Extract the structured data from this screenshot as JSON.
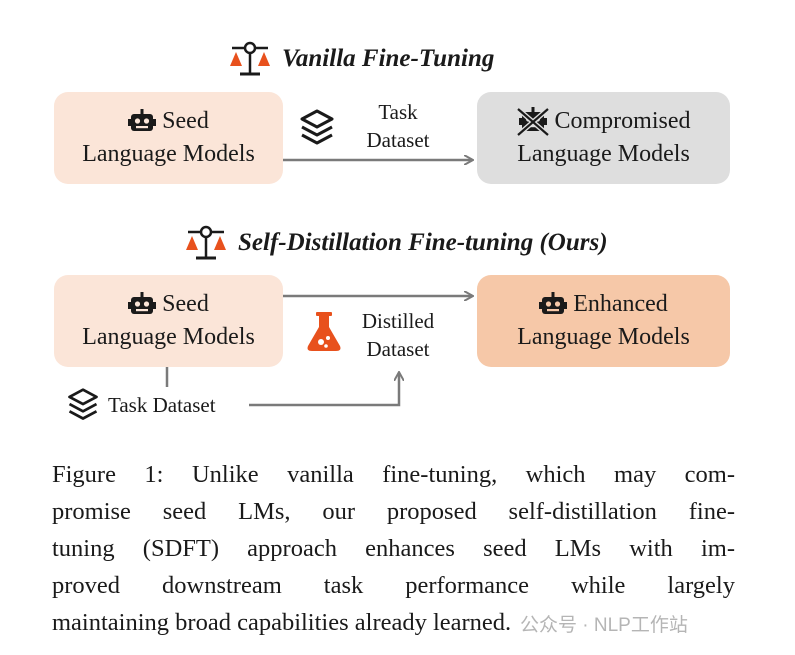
{
  "sections": {
    "vanilla": {
      "title": "Vanilla Fine-Tuning",
      "source_line1": "Seed",
      "source_line2": "Language Models",
      "edge_label_line1": "Task",
      "edge_label_line2": "Dataset",
      "target_line1": "Compromised",
      "target_line2": "Language Models"
    },
    "sdft": {
      "title": "Self-Distillation Fine-tuning (Ours)",
      "source_line1": "Seed",
      "source_line2": "Language Models",
      "distilled_line1": "Distilled",
      "distilled_line2": "Dataset",
      "task_dataset": "Task Dataset",
      "target_line1": "Enhanced",
      "target_line2": "Language Models"
    }
  },
  "caption": {
    "lines": [
      "Figure 1: Unlike vanilla fine-tuning, which may com-",
      "promise seed LMs, our proposed self-distillation fine-",
      "tuning (SDFT) approach enhances seed LMs with im-",
      "proved downstream task performance while largely",
      "maintaining broad capabilities already learned."
    ]
  },
  "watermark": "公众号 · NLP工作站",
  "colors": {
    "accent": "#e8511d",
    "seed_box": "#fbe5d8",
    "compromised_box": "#dedede",
    "enhanced_box": "#f6c8a8",
    "arrow": "#7a7a7a"
  },
  "icons": [
    "balance-scale-icon",
    "robot-icon",
    "layers-icon",
    "broken-robot-icon",
    "flask-icon"
  ]
}
